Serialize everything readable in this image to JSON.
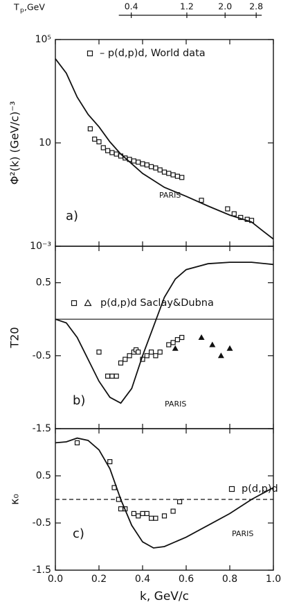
{
  "chart_data": [
    {
      "type": "line",
      "ylabel": "Φ²(k)  (GeV/c)⁻³",
      "log_y": true,
      "ylim": [
        0.001,
        100000
      ],
      "yticks": [
        {
          "value": 100000,
          "label": "10⁵"
        },
        10,
        {
          "value": 0.001,
          "label": "10⁻³"
        }
      ],
      "xlim": [
        0,
        1
      ],
      "top_axis": {
        "label": "T",
        "label_sub": "p",
        "label_suffix": ",GeV",
        "scale": "sqrt",
        "lim": [
          0,
          3.3
        ],
        "ticks": [
          0.4,
          1.2,
          {
            "value": 2,
            "label": "2.0"
          },
          2.8
        ]
      },
      "panel_label": "a)",
      "series": [
        {
          "name": "– p(d,p)d, World data",
          "marker": "square",
          "color": "#111111",
          "x": [
            0.16,
            0.18,
            0.2,
            0.22,
            0.24,
            0.26,
            0.28,
            0.3,
            0.32,
            0.34,
            0.36,
            0.38,
            0.4,
            0.42,
            0.44,
            0.46,
            0.48,
            0.5,
            0.52,
            0.54,
            0.56,
            0.58,
            0.67,
            0.79,
            0.82,
            0.85,
            0.88,
            0.9
          ],
          "values": [
            35,
            14,
            11,
            6.5,
            5,
            4.2,
            3.7,
            3.1,
            2.6,
            2.3,
            2.0,
            1.8,
            1.55,
            1.4,
            1.2,
            1.07,
            0.9,
            0.74,
            0.66,
            0.58,
            0.51,
            0.46,
            0.06,
            0.028,
            0.018,
            0.013,
            0.011,
            0.01
          ]
        },
        {
          "name": "PARIS",
          "marker": "line",
          "color": "#111111",
          "x": [
            0,
            0.05,
            0.1,
            0.15,
            0.2,
            0.25,
            0.3,
            0.4,
            0.5,
            0.6,
            0.7,
            0.8,
            0.9,
            0.95,
            1.0
          ],
          "values": [
            18000,
            5000,
            590,
            126,
            42,
            11,
            3.7,
            0.66,
            0.19,
            0.085,
            0.036,
            0.016,
            0.0087,
            0.004,
            0.0019
          ]
        }
      ]
    },
    {
      "type": "line",
      "ylabel": "T20",
      "ylim": [
        -1.5,
        1.0
      ],
      "yticks": [
        0.5,
        -0.5,
        -1.5
      ],
      "xlim": [
        0,
        1
      ],
      "zero_line": "solid",
      "panel_label": "b)",
      "series": [
        {
          "name": "p(d,p)d Saclay&Dubna",
          "marker": "square",
          "color": "#111111",
          "x": [
            0.2,
            0.24,
            0.26,
            0.28,
            0.3,
            0.32,
            0.34,
            0.36,
            0.37,
            0.38,
            0.4,
            0.42,
            0.44,
            0.46,
            0.48,
            0.52,
            0.54,
            0.56,
            0.58
          ],
          "values": [
            -0.45,
            -0.78,
            -0.78,
            -0.78,
            -0.6,
            -0.55,
            -0.5,
            -0.45,
            -0.42,
            -0.45,
            -0.55,
            -0.5,
            -0.45,
            -0.5,
            -0.45,
            -0.35,
            -0.32,
            -0.28,
            -0.25
          ]
        },
        {
          "marker": "triangle",
          "color": "#111111",
          "x": [
            0.55,
            0.67,
            0.72,
            0.76,
            0.8
          ],
          "values": [
            -0.4,
            -0.25,
            -0.35,
            -0.5,
            -0.4
          ]
        },
        {
          "name": "PARIS",
          "marker": "line",
          "color": "#111111",
          "x": [
            0,
            0.05,
            0.1,
            0.15,
            0.2,
            0.25,
            0.3,
            0.35,
            0.4,
            0.45,
            0.5,
            0.55,
            0.6,
            0.7,
            0.8,
            0.9,
            1.0
          ],
          "values": [
            0,
            -0.05,
            -0.25,
            -0.55,
            -0.85,
            -1.07,
            -1.15,
            -0.95,
            -0.5,
            -0.1,
            0.3,
            0.55,
            0.68,
            0.76,
            0.78,
            0.78,
            0.75
          ]
        }
      ]
    },
    {
      "type": "line",
      "ylabel": "κ₀",
      "xlabel": "k,  GeV/c",
      "ylim": [
        -1.5,
        1.5
      ],
      "yticks": [
        0.5,
        -0.5,
        -1.5
      ],
      "xlim": [
        0,
        1
      ],
      "xticks": [
        {
          "value": 0,
          "label": "0.0"
        },
        0.2,
        0.4,
        0.6,
        0.8,
        {
          "value": 1,
          "label": "1.0"
        }
      ],
      "zero_line": "dashed",
      "panel_label": "c)",
      "series": [
        {
          "name": "p(d,p)d",
          "marker": "square",
          "color": "#111111",
          "x": [
            0.1,
            0.25,
            0.27,
            0.29,
            0.3,
            0.32,
            0.36,
            0.38,
            0.4,
            0.42,
            0.44,
            0.46,
            0.5,
            0.54,
            0.57
          ],
          "values": [
            1.2,
            0.8,
            0.25,
            0.0,
            -0.2,
            -0.2,
            -0.3,
            -0.35,
            -0.3,
            -0.3,
            -0.4,
            -0.4,
            -0.35,
            -0.25,
            -0.05
          ]
        },
        {
          "name": "PARIS",
          "marker": "line",
          "color": "#111111",
          "x": [
            0,
            0.05,
            0.1,
            0.15,
            0.2,
            0.25,
            0.3,
            0.35,
            0.4,
            0.45,
            0.5,
            0.6,
            0.7,
            0.8,
            0.9,
            1.0
          ],
          "values": [
            1.2,
            1.22,
            1.3,
            1.25,
            1.05,
            0.65,
            0.0,
            -0.55,
            -0.9,
            -1.03,
            -1.0,
            -0.8,
            -0.55,
            -0.3,
            0.0,
            0.25
          ]
        }
      ]
    }
  ]
}
